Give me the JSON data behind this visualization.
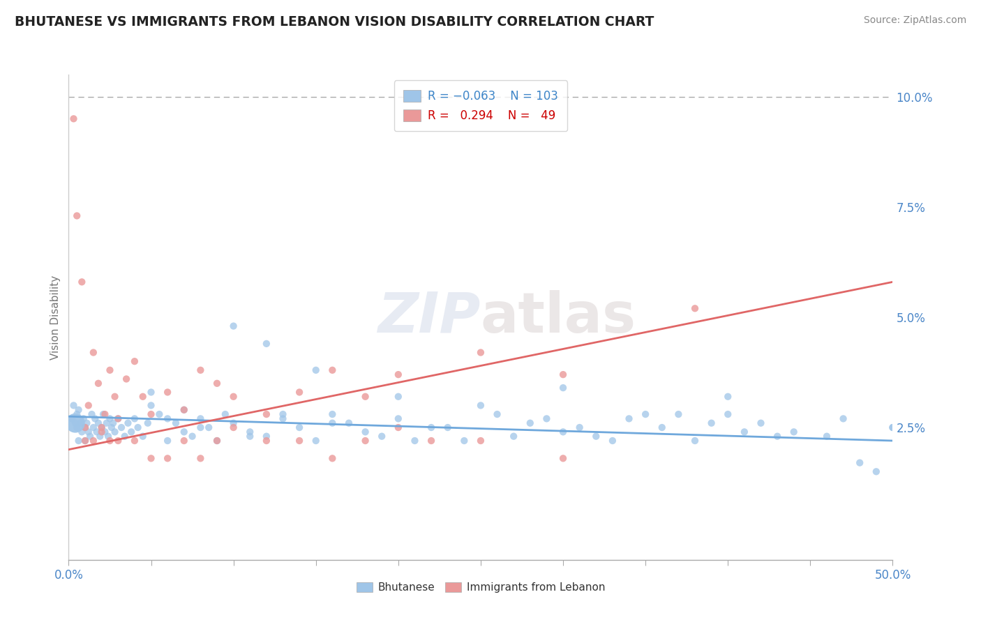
{
  "title": "BHUTANESE VS IMMIGRANTS FROM LEBANON VISION DISABILITY CORRELATION CHART",
  "source": "Source: ZipAtlas.com",
  "ylabel": "Vision Disability",
  "xmin": 0.0,
  "xmax": 0.5,
  "ymin": -0.005,
  "ymax": 0.105,
  "yticks": [
    0.0,
    0.025,
    0.05,
    0.075,
    0.1
  ],
  "ytick_labels": [
    "",
    "2.5%",
    "5.0%",
    "7.5%",
    "10.0%"
  ],
  "color_blue": "#9fc5e8",
  "color_pink": "#ea9999",
  "color_blue_line": "#6fa8dc",
  "color_pink_line": "#e06666",
  "trend_blue_start_y": 0.0275,
  "trend_blue_end_y": 0.022,
  "trend_pink_start_y": 0.02,
  "trend_pink_end_y": 0.058,
  "watermark": "ZIPatlas",
  "background_color": "#ffffff",
  "bhutanese_x": [
    0.002,
    0.003,
    0.004,
    0.005,
    0.005,
    0.006,
    0.006,
    0.007,
    0.008,
    0.009,
    0.01,
    0.01,
    0.011,
    0.012,
    0.013,
    0.014,
    0.015,
    0.016,
    0.017,
    0.018,
    0.019,
    0.02,
    0.021,
    0.022,
    0.023,
    0.024,
    0.025,
    0.026,
    0.027,
    0.028,
    0.03,
    0.032,
    0.034,
    0.036,
    0.038,
    0.04,
    0.042,
    0.045,
    0.048,
    0.05,
    0.055,
    0.06,
    0.065,
    0.07,
    0.075,
    0.08,
    0.085,
    0.09,
    0.095,
    0.1,
    0.11,
    0.12,
    0.13,
    0.14,
    0.15,
    0.16,
    0.17,
    0.18,
    0.19,
    0.2,
    0.22,
    0.24,
    0.26,
    0.28,
    0.3,
    0.32,
    0.34,
    0.36,
    0.38,
    0.4,
    0.42,
    0.44,
    0.46,
    0.48,
    0.5,
    0.1,
    0.12,
    0.15,
    0.2,
    0.25,
    0.3,
    0.35,
    0.4,
    0.06,
    0.08,
    0.11,
    0.13,
    0.16,
    0.21,
    0.23,
    0.27,
    0.29,
    0.31,
    0.33,
    0.37,
    0.39,
    0.41,
    0.43,
    0.47,
    0.49,
    0.5,
    0.05,
    0.07
  ],
  "bhutanese_y": [
    0.027,
    0.03,
    0.026,
    0.028,
    0.025,
    0.029,
    0.022,
    0.026,
    0.024,
    0.027,
    0.025,
    0.022,
    0.026,
    0.024,
    0.023,
    0.028,
    0.025,
    0.027,
    0.024,
    0.026,
    0.023,
    0.025,
    0.028,
    0.024,
    0.026,
    0.023,
    0.027,
    0.025,
    0.026,
    0.024,
    0.027,
    0.025,
    0.023,
    0.026,
    0.024,
    0.027,
    0.025,
    0.023,
    0.026,
    0.03,
    0.028,
    0.022,
    0.026,
    0.024,
    0.023,
    0.027,
    0.025,
    0.022,
    0.028,
    0.026,
    0.024,
    0.023,
    0.027,
    0.025,
    0.022,
    0.028,
    0.026,
    0.024,
    0.023,
    0.027,
    0.025,
    0.022,
    0.028,
    0.026,
    0.024,
    0.023,
    0.027,
    0.025,
    0.022,
    0.028,
    0.026,
    0.024,
    0.023,
    0.017,
    0.025,
    0.048,
    0.044,
    0.038,
    0.032,
    0.03,
    0.034,
    0.028,
    0.032,
    0.027,
    0.025,
    0.023,
    0.028,
    0.026,
    0.022,
    0.025,
    0.023,
    0.027,
    0.025,
    0.022,
    0.028,
    0.026,
    0.024,
    0.023,
    0.027,
    0.015,
    0.025,
    0.033,
    0.029
  ],
  "lebanon_x": [
    0.003,
    0.005,
    0.008,
    0.01,
    0.012,
    0.015,
    0.018,
    0.02,
    0.022,
    0.025,
    0.028,
    0.03,
    0.035,
    0.04,
    0.045,
    0.05,
    0.06,
    0.07,
    0.08,
    0.09,
    0.1,
    0.12,
    0.14,
    0.16,
    0.18,
    0.2,
    0.25,
    0.3,
    0.38,
    0.01,
    0.015,
    0.02,
    0.025,
    0.03,
    0.04,
    0.05,
    0.06,
    0.07,
    0.08,
    0.09,
    0.1,
    0.12,
    0.14,
    0.16,
    0.18,
    0.2,
    0.22,
    0.25,
    0.3
  ],
  "lebanon_y": [
    0.095,
    0.073,
    0.058,
    0.025,
    0.03,
    0.042,
    0.035,
    0.024,
    0.028,
    0.038,
    0.032,
    0.027,
    0.036,
    0.04,
    0.032,
    0.028,
    0.033,
    0.029,
    0.038,
    0.035,
    0.032,
    0.028,
    0.033,
    0.038,
    0.032,
    0.037,
    0.042,
    0.037,
    0.052,
    0.022,
    0.022,
    0.025,
    0.022,
    0.022,
    0.022,
    0.018,
    0.018,
    0.022,
    0.018,
    0.022,
    0.025,
    0.022,
    0.022,
    0.018,
    0.022,
    0.025,
    0.022,
    0.022,
    0.018
  ],
  "large_blue_x": [
    0.004
  ],
  "large_blue_y": [
    0.026
  ],
  "large_blue_size": 400
}
